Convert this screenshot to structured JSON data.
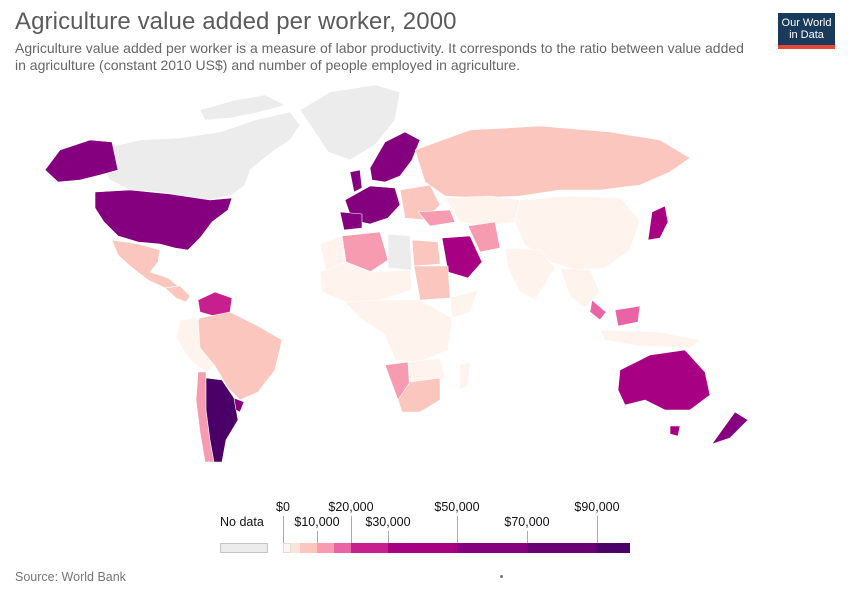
{
  "header": {
    "title": "Agriculture value added per worker, 2000",
    "subtitle": "Agriculture value added per worker is a measure of labor productivity. It corresponds to the ratio between value added in agriculture (constant 2010 US$) and number of people employed in agriculture."
  },
  "logo": {
    "line1": "Our World",
    "line2": "in Data"
  },
  "legend": {
    "no_data_label": "No data",
    "no_data_color": "#ececec",
    "bins": [
      {
        "color": "#fff3ee"
      },
      {
        "color": "#fde2d8"
      },
      {
        "color": "#fbc6bd"
      },
      {
        "color": "#f79bb0"
      },
      {
        "color": "#ea63a4"
      },
      {
        "color": "#c71f8e"
      },
      {
        "color": "#a70083"
      },
      {
        "color": "#85007e"
      },
      {
        "color": "#680074"
      },
      {
        "color": "#4a0066"
      }
    ],
    "labels": [
      {
        "text": "$0",
        "row": "top"
      },
      {
        "text": "$10,000",
        "row": "bottom"
      },
      {
        "text": "$20,000",
        "row": "top"
      },
      {
        "text": "$30,000",
        "row": "bottom"
      },
      {
        "text": "$50,000",
        "row": "top"
      },
      {
        "text": "$70,000",
        "row": "bottom"
      },
      {
        "text": "$90,000",
        "row": "top"
      }
    ]
  },
  "map": {
    "regions": [
      {
        "name": "Canada",
        "category": "No data",
        "color": "#ececec"
      },
      {
        "name": "Alaska (USA)",
        "category": "$50,000-$70,000",
        "color": "#85007e"
      },
      {
        "name": "United States",
        "category": "$50,000-$70,000",
        "color": "#85007e"
      },
      {
        "name": "Mexico",
        "category": "$1,000-$5,000",
        "color": "#fbc6bd"
      },
      {
        "name": "Greenland",
        "category": "No data",
        "color": "#ececec"
      },
      {
        "name": "Brazil",
        "category": "$1,000-$5,000",
        "color": "#fbc6bd"
      },
      {
        "name": "Argentina",
        "category": "$90,000+",
        "color": "#4a0066"
      },
      {
        "name": "Chile",
        "category": "$5,000-$10,000",
        "color": "#f79bb0"
      },
      {
        "name": "Venezuela",
        "category": "$10,000-$20,000",
        "color": "#ea63a4"
      },
      {
        "name": "Uruguay",
        "category": "$20,000-$30,000",
        "color": "#c71f8e"
      },
      {
        "name": "France",
        "category": "$50,000-$70,000",
        "color": "#85007e"
      },
      {
        "name": "Scandinavia",
        "category": "$50,000-$70,000",
        "color": "#85007e"
      },
      {
        "name": "Russia",
        "category": "$1,000-$5,000",
        "color": "#fbc6bd"
      },
      {
        "name": "China",
        "category": "$0-$1,000",
        "color": "#fff3ee"
      },
      {
        "name": "India",
        "category": "$0-$1,000",
        "color": "#fff3ee"
      },
      {
        "name": "Japan",
        "category": "$30,000-$50,000",
        "color": "#a70083"
      },
      {
        "name": "Saudi Arabia",
        "category": "$30,000-$50,000",
        "color": "#a70083"
      },
      {
        "name": "Iran",
        "category": "$5,000-$10,000",
        "color": "#f79bb0"
      },
      {
        "name": "Algeria",
        "category": "$5,000-$10,000",
        "color": "#f79bb0"
      },
      {
        "name": "Egypt",
        "category": "$1,000-$5,000",
        "color": "#fbc6bd"
      },
      {
        "name": "Sudan",
        "category": "$1,000-$5,000",
        "color": "#fbc6bd"
      },
      {
        "name": "Africa (other)",
        "category": "$0-$1,000",
        "color": "#fff3ee"
      },
      {
        "name": "Namibia",
        "category": "$5,000-$10,000",
        "color": "#f79bb0"
      },
      {
        "name": "South Africa",
        "category": "$1,000-$5,000",
        "color": "#fbc6bd"
      },
      {
        "name": "Australia",
        "category": "$30,000-$50,000",
        "color": "#a70083"
      },
      {
        "name": "New Zealand",
        "category": "$50,000-$70,000",
        "color": "#85007e"
      },
      {
        "name": "Malaysia",
        "category": "$10,000-$20,000",
        "color": "#ea63a4"
      },
      {
        "name": "Central Asia",
        "category": "$0-$1,000",
        "color": "#fff3ee"
      }
    ]
  },
  "footer": {
    "source": "Source: World Bank"
  }
}
